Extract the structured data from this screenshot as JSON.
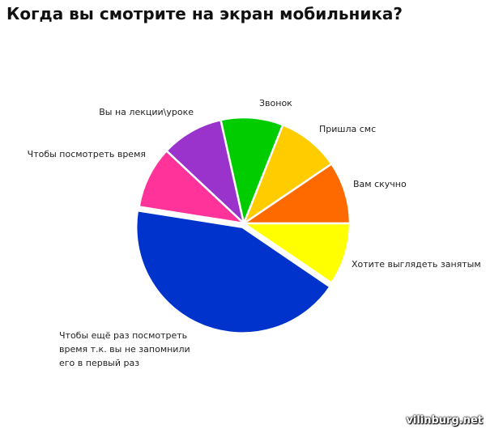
{
  "title": "Когда вы смотрите на экран мобильника?",
  "watermark": "vilinburg.net",
  "chart_data": {
    "type": "pie",
    "title": "Когда вы смотрите на экран мобильника?",
    "start_angle_deg": 0,
    "direction": "counterclockwise",
    "slices": [
      {
        "key": "bored",
        "label": [
          "Вам скучно"
        ],
        "value": 9.5,
        "color": "#ff6a00",
        "explode": 0
      },
      {
        "key": "sms",
        "label": [
          "Пришла смс"
        ],
        "value": 9.5,
        "color": "#ffcc00",
        "explode": 0
      },
      {
        "key": "call",
        "label": [
          "Звонок"
        ],
        "value": 9.5,
        "color": "#00cc00",
        "explode": 0
      },
      {
        "key": "lecture",
        "label": [
          "Вы на лекции\\уроке"
        ],
        "value": 9.5,
        "color": "#9933cc",
        "explode": 0
      },
      {
        "key": "time",
        "label": [
          "Чтобы посмотреть время"
        ],
        "value": 9.5,
        "color": "#ff3399",
        "explode": 0
      },
      {
        "key": "again",
        "label": [
          "Чтобы ещё раз посмотреть",
          "время т.к. вы не запомнили",
          "его в первый раз"
        ],
        "value": 43,
        "color": "#0033cc",
        "explode": 5
      },
      {
        "key": "busy",
        "label": [
          "Хотите выглядеть занятым"
        ],
        "value": 9.5,
        "color": "#ffff00",
        "explode": 0
      }
    ]
  }
}
